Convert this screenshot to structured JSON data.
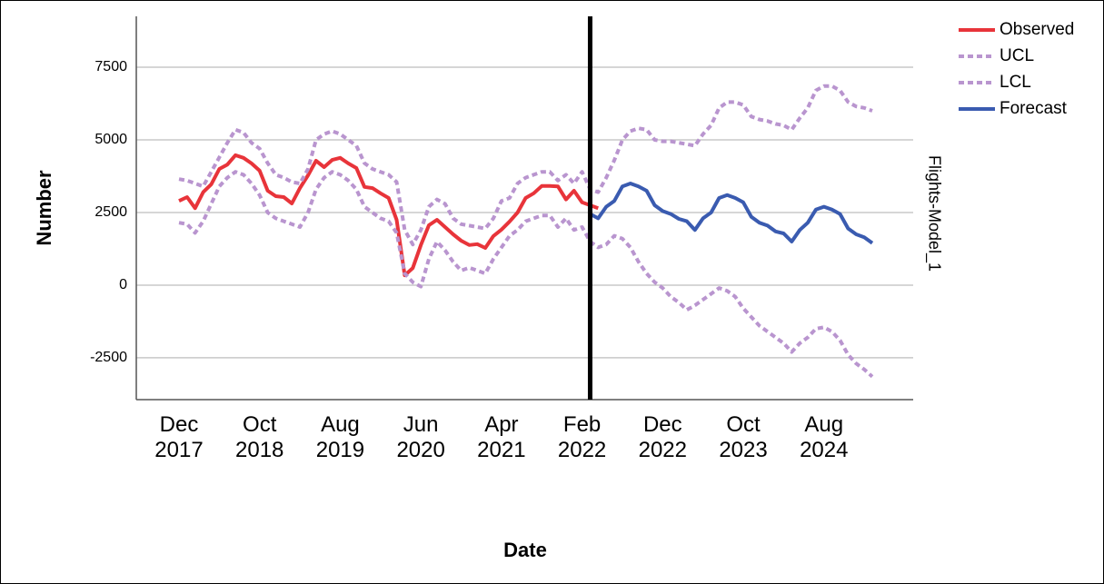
{
  "chart_data": {
    "type": "line",
    "x_label": "Date",
    "y_label": "Number",
    "side_label": "Flights-Model_1",
    "categories": [
      "Dec 2017",
      null,
      null,
      null,
      null,
      null,
      null,
      null,
      null,
      null,
      "Oct 2018",
      null,
      null,
      null,
      null,
      null,
      null,
      null,
      null,
      null,
      "Aug 2019",
      null,
      null,
      null,
      null,
      null,
      null,
      null,
      null,
      null,
      "Jun 2020",
      null,
      null,
      null,
      null,
      null,
      null,
      null,
      null,
      null,
      "Apr 2021",
      null,
      null,
      null,
      null,
      null,
      null,
      null,
      null,
      null,
      "Feb 2022",
      null,
      null,
      null,
      null,
      null,
      null,
      null,
      null,
      null,
      "Dec 2022",
      null,
      null,
      null,
      null,
      null,
      null,
      null,
      null,
      null,
      "Oct 2023",
      null,
      null,
      null,
      null,
      null,
      null,
      null,
      null,
      null,
      "Aug 2024",
      null,
      null,
      null,
      null,
      null,
      null
    ],
    "series": [
      {
        "name": "Observed",
        "color": "#e8343a",
        "dashed": false,
        "values": [
          2900,
          3030,
          2650,
          3200,
          3470,
          4000,
          4150,
          4470,
          4380,
          4190,
          3940,
          3250,
          3060,
          3030,
          2810,
          3340,
          3780,
          4280,
          4060,
          4310,
          4380,
          4190,
          4030,
          3380,
          3340,
          3160,
          3000,
          2250,
          340,
          590,
          1380,
          2060,
          2250,
          2000,
          1750,
          1530,
          1380,
          1410,
          1280,
          1690,
          1910,
          2190,
          2500,
          3000,
          3160,
          3410,
          3410,
          3400,
          2950,
          3250,
          2850,
          2750,
          2650,
          null,
          null,
          null,
          null,
          null,
          null,
          null,
          null,
          null,
          null,
          null,
          null,
          null,
          null,
          null,
          null,
          null,
          null,
          null,
          null,
          null,
          null,
          null,
          null,
          null,
          null,
          null,
          null,
          null,
          null,
          null,
          null,
          null,
          null
        ]
      },
      {
        "name": "UCL",
        "color": "#b995cf",
        "dashed": true,
        "values": [
          3650,
          3600,
          3500,
          3400,
          3900,
          4400,
          4900,
          5350,
          5250,
          4900,
          4700,
          4200,
          3800,
          3700,
          3550,
          3500,
          4000,
          5000,
          5200,
          5300,
          5200,
          5000,
          4800,
          4200,
          4000,
          3900,
          3800,
          3550,
          1900,
          1400,
          1900,
          2700,
          2950,
          2800,
          2300,
          2100,
          2050,
          2000,
          1950,
          2300,
          2900,
          3000,
          3500,
          3700,
          3800,
          3900,
          3900,
          3600,
          3800,
          3500,
          3900,
          3300,
          3200,
          3700,
          4300,
          5000,
          5300,
          5400,
          5350,
          5000,
          4950,
          4950,
          4900,
          4850,
          4800,
          5200,
          5500,
          6100,
          6300,
          6300,
          6200,
          5800,
          5700,
          5650,
          5550,
          5500,
          5350,
          5750,
          6100,
          6700,
          6850,
          6850,
          6700,
          6300,
          6150,
          6100,
          6000
        ]
      },
      {
        "name": "LCL",
        "color": "#b995cf",
        "dashed": true,
        "values": [
          2150,
          2100,
          1800,
          2200,
          2800,
          3400,
          3700,
          3900,
          3800,
          3500,
          3100,
          2500,
          2300,
          2200,
          2100,
          2000,
          2500,
          3300,
          3700,
          3900,
          3800,
          3600,
          3300,
          2700,
          2500,
          2300,
          2200,
          1800,
          400,
          100,
          -50,
          900,
          1500,
          1200,
          800,
          500,
          600,
          500,
          400,
          900,
          1300,
          1700,
          1900,
          2200,
          2300,
          2400,
          2400,
          2000,
          2300,
          1900,
          2000,
          1500,
          1300,
          1400,
          1700,
          1600,
          1300,
          800,
          400,
          100,
          -100,
          -400,
          -600,
          -850,
          -700,
          -500,
          -300,
          -100,
          -200,
          -400,
          -800,
          -1100,
          -1400,
          -1600,
          -1800,
          -2000,
          -2300,
          -2000,
          -1800,
          -1500,
          -1450,
          -1600,
          -1900,
          -2400,
          -2700,
          -2900,
          -3150
        ]
      },
      {
        "name": "Forecast",
        "color": "#3a5bb0",
        "dashed": false,
        "values": [
          null,
          null,
          null,
          null,
          null,
          null,
          null,
          null,
          null,
          null,
          null,
          null,
          null,
          null,
          null,
          null,
          null,
          null,
          null,
          null,
          null,
          null,
          null,
          null,
          null,
          null,
          null,
          null,
          null,
          null,
          null,
          null,
          null,
          null,
          null,
          null,
          null,
          null,
          null,
          null,
          null,
          null,
          null,
          null,
          null,
          null,
          null,
          null,
          null,
          null,
          null,
          2450,
          2300,
          2700,
          2900,
          3400,
          3500,
          3400,
          3250,
          2750,
          2550,
          2450,
          2280,
          2200,
          1900,
          2300,
          2500,
          3000,
          3100,
          3000,
          2850,
          2350,
          2150,
          2050,
          1850,
          1780,
          1500,
          1900,
          2150,
          2600,
          2700,
          2600,
          2450,
          1950,
          1750,
          1650,
          1450
        ]
      }
    ],
    "ylim": [
      -3940,
      9250
    ],
    "yticks": [
      7500,
      5000,
      2500,
      0,
      -2500
    ],
    "grid": true,
    "legend": "top-right"
  }
}
